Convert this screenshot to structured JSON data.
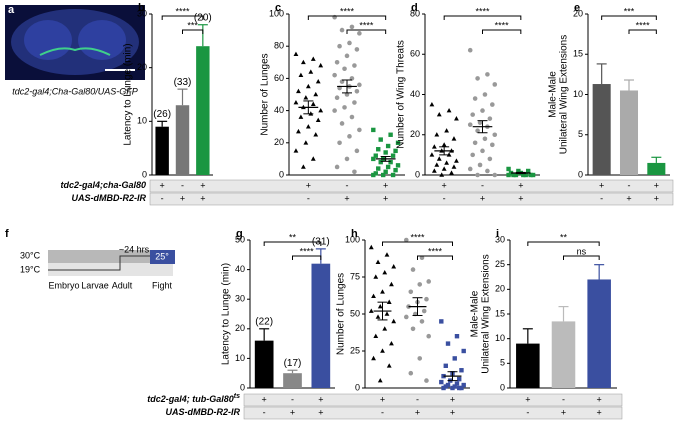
{
  "panel_a": {
    "label": "a",
    "caption": "tdc2-gal4;Cha-Gal80/UAS-GFP"
  },
  "panel_f": {
    "label": "f",
    "temp_high": "30°C",
    "temp_low": "19°C",
    "duration": "~24 hrs",
    "temp_fight": "25°",
    "stages": [
      "Embryo",
      "Larvae",
      "Adult",
      "Fight"
    ]
  },
  "genotypes_top": [
    {
      "name": "tdc2-gal4;cha-Gal80",
      "signs": [
        "+",
        "-",
        "+"
      ]
    },
    {
      "name": "UAS-dMBD-R2-IR",
      "signs": [
        "-",
        "+",
        "+"
      ]
    }
  ],
  "genotypes_bottom": [
    {
      "name": "tdc2-gal4; tub-Gal80",
      "superscript": "ts",
      "signs": [
        "+",
        "-",
        "+"
      ]
    },
    {
      "name": "UAS-dMBD-R2-IR",
      "signs": [
        "-",
        "+",
        "+"
      ]
    }
  ],
  "chart_data": [
    {
      "type": "bar",
      "panel": "b",
      "ylabel": [
        "Latency to Lunge (min)"
      ],
      "values": [
        9,
        13,
        24
      ],
      "errors": [
        1,
        3,
        4
      ],
      "colors": [
        "#000000",
        "#777777",
        "#1a9641"
      ],
      "annotations": [
        "(26)",
        "(33)",
        "(20)"
      ],
      "ylim": [
        0,
        30
      ],
      "yticks": [
        0,
        10,
        20,
        30
      ],
      "significance": [
        {
          "from": 0,
          "to": 2,
          "label": "****"
        },
        {
          "from": 1,
          "to": 2,
          "label": "***"
        }
      ]
    },
    {
      "type": "strip",
      "panel": "c",
      "ylabel": [
        "Number of Lunges"
      ],
      "ylim": [
        0,
        100
      ],
      "yticks": [
        0,
        20,
        40,
        60,
        80,
        100
      ],
      "series": [
        {
          "marker": "triangle",
          "color": "#000000",
          "mean": 42,
          "sem": 4,
          "values": [
            75,
            72,
            70,
            68,
            64,
            62,
            58,
            55,
            52,
            50,
            48,
            45,
            44,
            42,
            40,
            38,
            36,
            34,
            30,
            27,
            25,
            20,
            15,
            10,
            5
          ]
        },
        {
          "marker": "circle",
          "color": "#999999",
          "mean": 55,
          "sem": 4,
          "values": [
            98,
            92,
            90,
            88,
            82,
            80,
            78,
            74,
            70,
            68,
            66,
            62,
            60,
            58,
            56,
            55,
            54,
            52,
            50,
            48,
            45,
            42,
            40,
            36,
            32,
            28,
            24,
            20,
            15,
            10,
            5,
            2
          ]
        },
        {
          "marker": "square",
          "color": "#1a9641",
          "mean": 10,
          "sem": 1.5,
          "values": [
            28,
            25,
            22,
            20,
            18,
            16,
            15,
            14,
            12,
            12,
            10,
            10,
            8,
            8,
            6,
            5,
            4,
            3,
            2,
            1,
            0,
            0,
            0
          ]
        }
      ],
      "significance": [
        {
          "from": 0,
          "to": 2,
          "label": "****"
        },
        {
          "from": 1,
          "to": 2,
          "label": "****"
        }
      ]
    },
    {
      "type": "strip",
      "panel": "d",
      "ylabel": [
        "Number of Wing Threats"
      ],
      "ylim": [
        0,
        80
      ],
      "yticks": [
        0,
        20,
        40,
        60,
        80
      ],
      "series": [
        {
          "marker": "triangle",
          "color": "#000000",
          "mean": 12,
          "sem": 2,
          "values": [
            35,
            32,
            30,
            28,
            22,
            20,
            18,
            15,
            14,
            12,
            12,
            10,
            10,
            8,
            7,
            6,
            5,
            4,
            3,
            2,
            1,
            0
          ]
        },
        {
          "marker": "circle",
          "color": "#999999",
          "mean": 24,
          "sem": 3,
          "values": [
            62,
            50,
            48,
            45,
            40,
            38,
            35,
            32,
            30,
            28,
            26,
            25,
            24,
            22,
            20,
            18,
            16,
            15,
            12,
            10,
            8,
            5,
            3,
            2,
            0,
            0
          ]
        },
        {
          "marker": "square",
          "color": "#1a9641",
          "mean": 1,
          "sem": 0.3,
          "values": [
            0,
            0,
            0,
            0,
            0,
            0,
            0,
            1,
            1,
            2,
            2,
            3
          ]
        }
      ],
      "significance": [
        {
          "from": 0,
          "to": 2,
          "label": "****"
        },
        {
          "from": 1,
          "to": 2,
          "label": "****"
        }
      ]
    },
    {
      "type": "bar",
      "panel": "e",
      "ylabel": [
        "Male-Male",
        "Unilateral Wing Extensions"
      ],
      "values": [
        11.3,
        10.5,
        1.5
      ],
      "errors": [
        2.5,
        1.3,
        0.7
      ],
      "colors": [
        "#555555",
        "#aaaaaa",
        "#1a9641"
      ],
      "ylim": [
        0,
        20
      ],
      "yticks": [
        0,
        5,
        10,
        15,
        20
      ],
      "significance": [
        {
          "from": 0,
          "to": 2,
          "label": "***"
        },
        {
          "from": 1,
          "to": 2,
          "label": "****"
        }
      ]
    },
    {
      "type": "bar",
      "panel": "g",
      "ylabel": [
        "Latency to Lunge (min)"
      ],
      "values": [
        16,
        5,
        42
      ],
      "errors": [
        4,
        1,
        5
      ],
      "colors": [
        "#000000",
        "#888888",
        "#3a4fa0"
      ],
      "annotations": [
        "(22)",
        "(17)",
        "(31)"
      ],
      "ylim": [
        0,
        50
      ],
      "yticks": [
        0,
        10,
        20,
        30,
        40,
        50
      ],
      "significance": [
        {
          "from": 0,
          "to": 2,
          "label": "**"
        },
        {
          "from": 1,
          "to": 2,
          "label": "****"
        }
      ]
    },
    {
      "type": "strip",
      "panel": "h",
      "ylabel": [
        "Number of Lunges"
      ],
      "ylim": [
        0,
        100
      ],
      "yticks": [
        0,
        25,
        50,
        75,
        100
      ],
      "series": [
        {
          "marker": "triangle",
          "color": "#000000",
          "mean": 52,
          "sem": 6,
          "values": [
            95,
            90,
            85,
            82,
            78,
            75,
            70,
            65,
            62,
            58,
            55,
            52,
            50,
            48,
            45,
            40,
            35,
            30,
            25,
            20,
            15,
            5
          ]
        },
        {
          "marker": "circle",
          "color": "#999999",
          "mean": 55,
          "sem": 6,
          "values": [
            100,
            88,
            80,
            72,
            70,
            65,
            60,
            58,
            55,
            52,
            50,
            48,
            45,
            40,
            35,
            20,
            10,
            5
          ]
        },
        {
          "marker": "square",
          "color": "#3a4fa0",
          "mean": 8,
          "sem": 3,
          "values": [
            45,
            35,
            30,
            25,
            20,
            15,
            12,
            10,
            8,
            6,
            5,
            4,
            3,
            2,
            2,
            1,
            1,
            0,
            0,
            0,
            0
          ]
        }
      ],
      "significance": [
        {
          "from": 0,
          "to": 2,
          "label": "****"
        },
        {
          "from": 1,
          "to": 2,
          "label": "****"
        }
      ]
    },
    {
      "type": "bar",
      "panel": "i",
      "ylabel": [
        "Male-Male",
        "Unilateral Wing Extensions"
      ],
      "values": [
        9,
        13.5,
        22
      ],
      "errors": [
        3,
        3,
        3
      ],
      "colors": [
        "#000000",
        "#bbbbbb",
        "#3a4fa0"
      ],
      "ylim": [
        0,
        30
      ],
      "yticks": [
        0,
        5,
        10,
        15,
        20,
        25,
        30
      ],
      "significance": [
        {
          "from": 0,
          "to": 2,
          "label": "**"
        },
        {
          "from": 1,
          "to": 2,
          "label": "ns"
        }
      ]
    }
  ]
}
